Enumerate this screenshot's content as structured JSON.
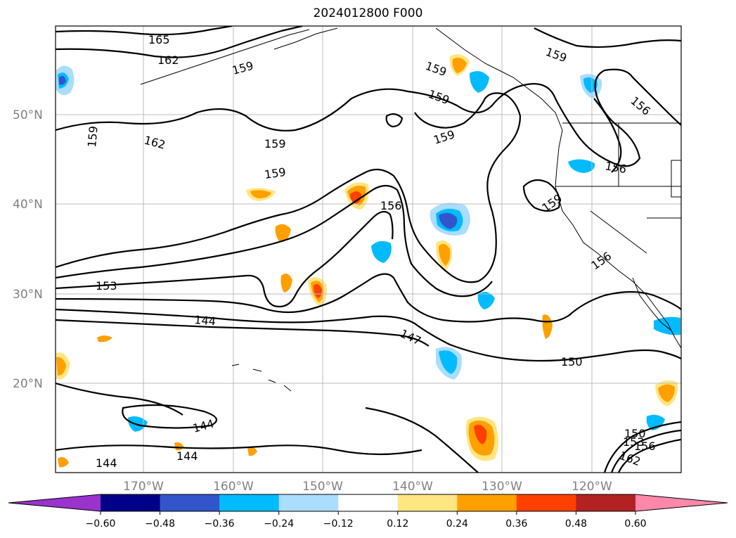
{
  "title": "2024012800 F000",
  "latitude_labels": [
    "50°N",
    "40°N",
    "30°N",
    "20°N"
  ],
  "longitude_labels": [
    "170°W",
    "160°W",
    "150°W",
    "140°W",
    "130°W",
    "120°W"
  ],
  "contour_labels": [
    "165",
    "162",
    "159",
    "159",
    "159",
    "159",
    "156",
    "159",
    "162",
    "159",
    "159",
    "159",
    "156",
    "156",
    "159",
    "156",
    "153",
    "144",
    "147",
    "150",
    "144",
    "144",
    "144",
    "150",
    "153",
    "156",
    "162"
  ],
  "colorbar": {
    "ticks": [
      "−0.60",
      "−0.48",
      "−0.36",
      "−0.24",
      "−0.12",
      "0.12",
      "0.24",
      "0.36",
      "0.48",
      "0.60"
    ],
    "colors": [
      "#9933cc",
      "#000088",
      "#3355cc",
      "#00bbff",
      "#aaddff",
      "#ffffff",
      "#ffe680",
      "#ffa000",
      "#ff4000",
      "#b22222",
      "#ff88aa"
    ]
  }
}
